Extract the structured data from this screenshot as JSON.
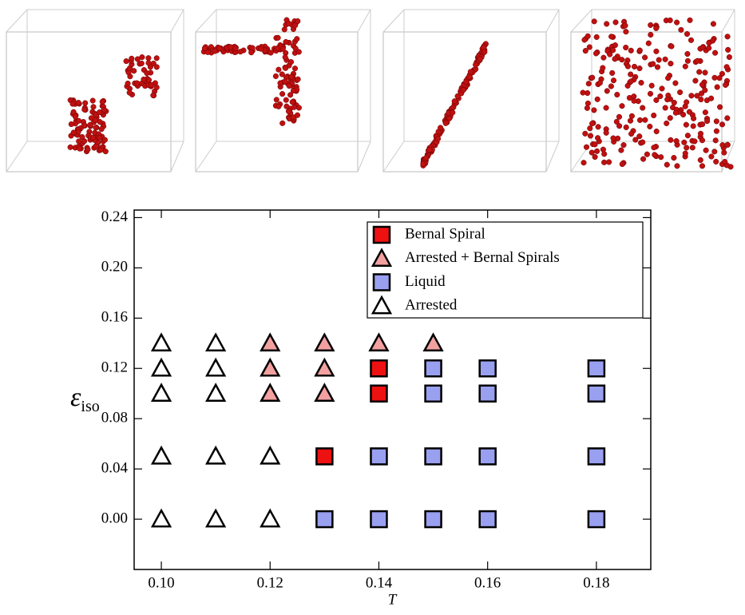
{
  "chart_data": {
    "type": "scatter",
    "xlabel": "T",
    "ylabel": {
      "symbol": "ε",
      "subscript": "iso"
    },
    "xlim": [
      0.095,
      0.19
    ],
    "ylim": [
      -0.04,
      0.246
    ],
    "xticks": [
      {
        "value": 0.1,
        "label": "0.10"
      },
      0.12,
      0.14,
      0.16,
      0.18
    ],
    "yticks": [
      {
        "value": 0,
        "label": "0.00"
      },
      0.04,
      0.08,
      0.12,
      0.16,
      {
        "value": 0.2,
        "label": "0.20"
      },
      0.24
    ],
    "legend": "upper right",
    "series": [
      {
        "name": "Bernal Spiral",
        "marker": "square",
        "color": "#ee1111",
        "x": [
          0.14,
          0.14,
          0.13
        ],
        "y": [
          0.12,
          0.1,
          0.05
        ]
      },
      {
        "name": "Arrested + Bernal Spirals",
        "marker": "triangle",
        "color": "#f2a0a0",
        "x": [
          0.12,
          0.13,
          0.14,
          0.15,
          0.12,
          0.13,
          0.12,
          0.13
        ],
        "y": [
          0.14,
          0.14,
          0.14,
          0.14,
          0.12,
          0.12,
          0.1,
          0.1
        ]
      },
      {
        "name": "Liquid",
        "marker": "square",
        "color": "#9aa0f0",
        "x": [
          0.15,
          0.16,
          0.18,
          0.15,
          0.16,
          0.18,
          0.14,
          0.15,
          0.16,
          0.18,
          0.13,
          0.14,
          0.15,
          0.16,
          0.18
        ],
        "y": [
          0.12,
          0.12,
          0.12,
          0.1,
          0.1,
          0.1,
          0.05,
          0.05,
          0.05,
          0.05,
          0,
          0,
          0,
          0,
          0
        ]
      },
      {
        "name": "Arrested",
        "marker": "triangle",
        "color": "#ffffff",
        "x": [
          0.1,
          0.1,
          0.1,
          0.1,
          0.1,
          0.11,
          0.11,
          0.11,
          0.11,
          0.11,
          0.12,
          0.12
        ],
        "y": [
          0.14,
          0.12,
          0.1,
          0.05,
          0,
          0.14,
          0.12,
          0.1,
          0.05,
          0,
          0.05,
          0
        ]
      }
    ]
  }
}
